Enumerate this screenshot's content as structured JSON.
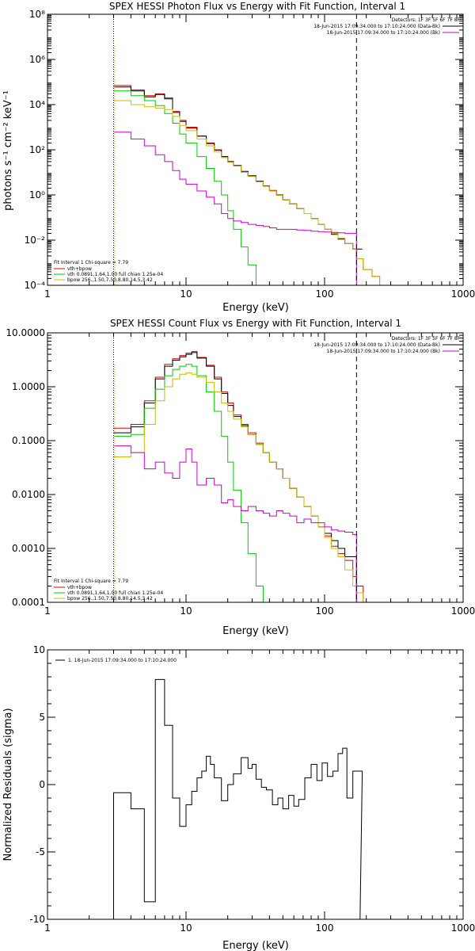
{
  "colors": {
    "data": "#000000",
    "bkg": "#cc00cc",
    "total": "#dd0000",
    "vth": "#00cc00",
    "bpow": "#ccbb00",
    "energy_range_low": "#ff8800"
  },
  "chart_data": [
    {
      "type": "line",
      "title": "SPEX HESSI Photon Flux vs Energy with Fit Function, Interval 1",
      "xlabel": "Energy (keV)",
      "ylabel": "photons s⁻¹ cm⁻² keV⁻¹",
      "xscale": "log",
      "yscale": "log",
      "xlim": [
        1,
        1000
      ],
      "ylim": [
        0.0001,
        100000000
      ],
      "xticks": [
        1,
        10,
        100,
        1000
      ],
      "xtick_labels": [
        "1",
        "10",
        "100",
        "1000"
      ],
      "yticks": [
        0.0001,
        0.01,
        1,
        100,
        10000,
        1000000,
        100000000
      ],
      "ytick_labels": [
        "10⁻⁴",
        "10⁻²",
        "10⁰",
        "10²",
        "10⁴",
        "10⁶",
        "10⁸"
      ],
      "vlines": [
        {
          "x": 3,
          "style": "dotted"
        },
        {
          "x": 170,
          "style": "dashed"
        }
      ],
      "legend_top_right": [
        "Detectors: 1F 3F 5F 6F 7F 8F",
        "18-Jun-2015 17:09:34.000 to 17:10:24.000 (Data-Bk)",
        "18-Jun-2015 17:09:34.000 to 17:10:24.000 (Bk)"
      ],
      "legend_bottom_left": [
        "Fit Interval 1    Chi-square = 7.79",
        "vth+bpow",
        "vth 0.0891,1.64,1.00  full chian 1.25e-04",
        "bpow 256.,1.50,7.50,8.80,14.5,3.42"
      ],
      "series": [
        {
          "key": "total",
          "color": "#dd0000",
          "step": true,
          "x": [
            3,
            4,
            5,
            6,
            7,
            8,
            9,
            10,
            12,
            14,
            16,
            18,
            20,
            22,
            25,
            28,
            32,
            36,
            40,
            45,
            50,
            56,
            63,
            71,
            80,
            90,
            100,
            112,
            125,
            140,
            160,
            170,
            190,
            220,
            250,
            280
          ],
          "y": [
            70000,
            45000,
            25000,
            30000,
            20000,
            5000,
            2000,
            1000,
            400,
            200,
            100,
            50,
            30,
            20,
            10,
            7,
            4,
            2.5,
            1.6,
            1,
            0.6,
            0.4,
            0.25,
            0.15,
            0.09,
            0.05,
            0.03,
            0.02,
            0.012,
            0.007,
            0.004,
            0.0015,
            0.0005,
            0.00025,
            0.0001,
            0.0001
          ]
        },
        {
          "key": "data",
          "color": "#000000",
          "step": true,
          "x": [
            3,
            4,
            5,
            6,
            7,
            8,
            9,
            10,
            12,
            14,
            16,
            18,
            20,
            22,
            25,
            28,
            32,
            36,
            40,
            45,
            50,
            56,
            63,
            71,
            80,
            90,
            100,
            112,
            125,
            140,
            160,
            170
          ],
          "y": [
            60000,
            40000,
            22000,
            28000,
            18000,
            4500,
            1800,
            900,
            400,
            190,
            95,
            50,
            30,
            20,
            11,
            7,
            4,
            2.5,
            1.5,
            1,
            0.6,
            0.4,
            0.25,
            0.15,
            0.09,
            0.05,
            0.03,
            0.018,
            0.011,
            0.007,
            0.004,
            0.004
          ]
        },
        {
          "key": "vth",
          "color": "#00cc00",
          "step": true,
          "x": [
            3,
            4,
            5,
            6,
            7,
            8,
            9,
            10,
            12,
            14,
            16,
            18,
            20,
            22,
            25,
            28,
            32,
            36
          ],
          "y": [
            40000,
            25000,
            15000,
            9000,
            4000,
            1500,
            500,
            200,
            50,
            15,
            4,
            1,
            0.2,
            0.03,
            0.005,
            0.0008,
            0.0001,
            0.0001
          ]
        },
        {
          "key": "bpow",
          "color": "#ccbb00",
          "step": true,
          "x": [
            3,
            4,
            5,
            6,
            7,
            8,
            9,
            10,
            12,
            14,
            16,
            18,
            20,
            22,
            25,
            28,
            32,
            36,
            40,
            45,
            50,
            56,
            63,
            71,
            80,
            90,
            100,
            112,
            125,
            140,
            160,
            170,
            190,
            220,
            250,
            280
          ],
          "y": [
            15000,
            10000,
            8000,
            7000,
            6000,
            3000,
            1200,
            700,
            300,
            150,
            80,
            45,
            28,
            19,
            10,
            6.5,
            3.8,
            2.4,
            1.5,
            0.95,
            0.6,
            0.4,
            0.25,
            0.15,
            0.09,
            0.05,
            0.03,
            0.02,
            0.012,
            0.007,
            0.004,
            0.0015,
            0.0005,
            0.00025,
            0.0001,
            0.0001
          ]
        },
        {
          "key": "bkg",
          "color": "#cc00cc",
          "step": true,
          "x": [
            3,
            4,
            5,
            6,
            7,
            8,
            9,
            10,
            12,
            14,
            16,
            18,
            20,
            22,
            25,
            28,
            32,
            36,
            40,
            45,
            50,
            56,
            63,
            71,
            80,
            90,
            100,
            112,
            125,
            140,
            160,
            170
          ],
          "y": [
            600,
            300,
            150,
            60,
            30,
            12,
            5,
            3,
            1.5,
            0.8,
            0.4,
            0.15,
            0.09,
            0.07,
            0.06,
            0.05,
            0.045,
            0.04,
            0.035,
            0.03,
            0.03,
            0.03,
            0.028,
            0.027,
            0.025,
            0.024,
            0.023,
            0.022,
            0.021,
            0.02,
            0.02,
            0.0001
          ]
        }
      ]
    },
    {
      "type": "line",
      "title": "SPEX HESSI Count Flux vs Energy with Fit Function, Interval 1",
      "xlabel": "Energy (keV)",
      "ylabel": "",
      "xscale": "log",
      "yscale": "log",
      "xlim": [
        1,
        1000
      ],
      "ylim": [
        0.0001,
        10
      ],
      "xticks": [
        1,
        10,
        100,
        1000
      ],
      "xtick_labels": [
        "1",
        "10",
        "100",
        "1000"
      ],
      "yticks": [
        0.0001,
        0.001,
        0.01,
        0.1,
        1,
        10
      ],
      "ytick_labels": [
        "0.0001",
        "0.0010",
        "0.0100",
        "0.1000",
        "1.0000",
        "10.0000"
      ],
      "vlines": [
        {
          "x": 3,
          "style": "dotted"
        },
        {
          "x": 170,
          "style": "dashed"
        }
      ],
      "legend_top_right": [
        "Detectors: 1F 3F 5F 6F 7F 8F",
        "18-Jun-2015 17:09:34.000 to 17:10:24.000 (Data-Bk)",
        "18-Jun-2015 17:09:34.000 to 17:10:24.000 (Bk)"
      ],
      "legend_bottom_left": [
        "Fit Interval 1    Chi-square = 7.79",
        "vth+bpow",
        "vth 0.0891,1.64,1.00  full chian 1.25e-04",
        "bpow 256.,1.50,7.50,8.80,14.5,3.42"
      ],
      "series": [
        {
          "key": "total",
          "color": "#dd0000",
          "step": true,
          "x": [
            3,
            4,
            5,
            6,
            7,
            8,
            9,
            10,
            11,
            12,
            14,
            16,
            18,
            20,
            22,
            25,
            28,
            32,
            36,
            40,
            45,
            50,
            56,
            63,
            71,
            80,
            90,
            100,
            112,
            125,
            140,
            160,
            170,
            190,
            220,
            250
          ],
          "y": [
            0.17,
            0.2,
            0.55,
            1.5,
            2.6,
            3.3,
            3.8,
            4.2,
            4.5,
            3.5,
            2.5,
            1.5,
            0.8,
            0.5,
            0.3,
            0.2,
            0.14,
            0.09,
            0.06,
            0.04,
            0.03,
            0.02,
            0.013,
            0.009,
            0.006,
            0.004,
            0.0025,
            0.0017,
            0.0011,
            0.0008,
            0.0006,
            0.0003,
            0.0002,
            0.0001,
            0.0001,
            0.0001
          ]
        },
        {
          "key": "data",
          "color": "#000000",
          "step": true,
          "x": [
            3,
            4,
            5,
            6,
            7,
            8,
            9,
            10,
            11,
            12,
            14,
            16,
            18,
            20,
            22,
            25,
            28,
            32,
            36,
            40,
            45,
            50,
            56,
            63,
            71,
            80,
            90,
            100,
            112,
            125,
            140,
            160,
            170
          ],
          "y": [
            0.14,
            0.18,
            0.5,
            1.4,
            2.4,
            3.1,
            3.6,
            4.0,
            4.3,
            3.4,
            2.4,
            1.4,
            0.75,
            0.45,
            0.28,
            0.19,
            0.13,
            0.085,
            0.06,
            0.04,
            0.03,
            0.02,
            0.013,
            0.009,
            0.006,
            0.004,
            0.0025,
            0.0019,
            0.0014,
            0.001,
            0.0007,
            0.0007,
            0.0001
          ]
        },
        {
          "key": "vth",
          "color": "#00cc00",
          "step": true,
          "x": [
            3,
            4,
            5,
            6,
            7,
            8,
            9,
            10,
            11,
            12,
            14,
            16,
            18,
            20,
            22,
            25,
            28,
            32,
            36
          ],
          "y": [
            0.12,
            0.13,
            0.4,
            0.9,
            1.6,
            2.1,
            2.4,
            2.6,
            2.4,
            1.6,
            0.8,
            0.35,
            0.12,
            0.04,
            0.012,
            0.003,
            0.0008,
            0.0002,
            0.0001
          ]
        },
        {
          "key": "bpow",
          "color": "#ccbb00",
          "step": true,
          "x": [
            3,
            4,
            5,
            6,
            7,
            8,
            9,
            10,
            11,
            12,
            14,
            16,
            18,
            20,
            22,
            25,
            28,
            32,
            36,
            40,
            45,
            50,
            56,
            63,
            71,
            80,
            90,
            100,
            112,
            125,
            140,
            160,
            170,
            190,
            220,
            250
          ],
          "y": [
            0.05,
            0.06,
            0.2,
            0.55,
            1.0,
            1.4,
            1.7,
            1.8,
            1.7,
            1.5,
            1.2,
            0.8,
            0.5,
            0.35,
            0.25,
            0.18,
            0.13,
            0.085,
            0.06,
            0.04,
            0.03,
            0.02,
            0.013,
            0.009,
            0.006,
            0.004,
            0.0025,
            0.0016,
            0.001,
            0.0007,
            0.0004,
            0.0002,
            0.00015,
            0.0001,
            0.0001,
            0.0001
          ]
        },
        {
          "key": "bkg",
          "color": "#cc00cc",
          "step": true,
          "x": [
            3,
            4,
            5,
            6,
            7,
            8,
            9,
            10,
            11,
            12,
            14,
            16,
            18,
            20,
            22,
            25,
            28,
            32,
            36,
            40,
            45,
            50,
            56,
            63,
            71,
            80,
            90,
            100,
            112,
            125,
            140,
            160,
            170
          ],
          "y": [
            0.08,
            0.06,
            0.03,
            0.04,
            0.025,
            0.02,
            0.04,
            0.07,
            0.04,
            0.015,
            0.02,
            0.015,
            0.007,
            0.008,
            0.006,
            0.005,
            0.006,
            0.005,
            0.0045,
            0.004,
            0.005,
            0.0045,
            0.004,
            0.003,
            0.0035,
            0.003,
            0.003,
            0.0025,
            0.0022,
            0.0021,
            0.002,
            0.0018,
            0.0001
          ]
        }
      ]
    },
    {
      "type": "line",
      "title": "",
      "xlabel": "Energy (keV)",
      "ylabel": "Normalized Residuals (sigma)",
      "xscale": "log",
      "yscale": "linear",
      "xlim": [
        1,
        1000
      ],
      "ylim": [
        -10,
        10
      ],
      "xticks": [
        1,
        10,
        100,
        1000
      ],
      "xtick_labels": [
        "1",
        "10",
        "100",
        "1000"
      ],
      "yticks": [
        -10,
        -5,
        0,
        5,
        10
      ],
      "ytick_labels": [
        "-10",
        "-5",
        "0",
        "5",
        "10"
      ],
      "legend_top_left": [
        "1. 18-Jun-2015 17:09:34.000 to 17:10:24.000"
      ],
      "series": [
        {
          "key": "residuals",
          "color": "#000000",
          "step": true,
          "x": [
            3,
            4,
            5,
            6,
            7,
            8,
            9,
            10,
            11,
            12,
            13,
            14,
            15,
            16,
            18,
            20,
            22,
            25,
            28,
            30,
            32,
            35,
            38,
            42,
            46,
            50,
            55,
            60,
            65,
            72,
            80,
            88,
            96,
            105,
            115,
            125,
            135,
            145,
            160,
            170
          ],
          "y": [
            -0.6,
            -1.8,
            -8.7,
            7.8,
            4.4,
            -1.0,
            -3.1,
            -1.5,
            -0.5,
            0.5,
            1.0,
            2.1,
            1.5,
            0.5,
            -1.2,
            0.0,
            0.8,
            2.0,
            1.2,
            1.5,
            0.4,
            -0.2,
            -0.4,
            -1.5,
            -1.0,
            -1.8,
            -0.8,
            -1.6,
            -1.1,
            0.5,
            1.5,
            0.3,
            1.6,
            0.6,
            1.0,
            2.3,
            2.7,
            -1.0,
            1.0,
            1.0
          ]
        }
      ]
    }
  ]
}
